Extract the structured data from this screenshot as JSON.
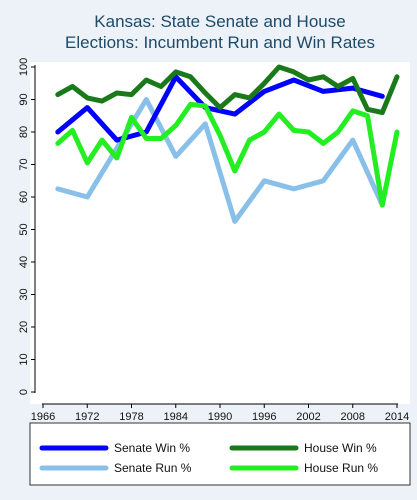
{
  "chart_data": {
    "type": "line",
    "title": [
      "Kansas: State Senate and House",
      "Elections: Incumbent Run and Win Rates"
    ],
    "xlabel": "",
    "ylabel": "",
    "xlim": [
      1966,
      2014
    ],
    "ylim": [
      0,
      100
    ],
    "x_ticks": [
      1966,
      1972,
      1978,
      1984,
      1990,
      1996,
      2002,
      2008,
      2014
    ],
    "x_tick_labels": [
      "1966",
      "1972",
      "1978",
      "1984",
      "1990",
      "1996",
      "2002",
      "2008",
      "2014"
    ],
    "y_ticks": [
      0,
      10,
      20,
      30,
      40,
      50,
      60,
      70,
      80,
      90,
      100
    ],
    "y_tick_labels": [
      "0",
      "10",
      "20",
      "30",
      "40",
      "50",
      "60",
      "70",
      "80",
      "90",
      "100"
    ],
    "grid": false,
    "legend_position": "bottom",
    "series": [
      {
        "name": "Senate Run %",
        "color": "#88c0ea",
        "x": [
          1968,
          1972,
          1976,
          1980,
          1984,
          1988,
          1992,
          1996,
          2000,
          2004,
          2008,
          2012
        ],
        "y": [
          62.5,
          60,
          75,
          90,
          72.5,
          82.5,
          52.5,
          65,
          62.5,
          65,
          77.5,
          57.5
        ]
      },
      {
        "name": "Senate Win %",
        "color": "#0000ff",
        "x": [
          1968,
          1972,
          1976,
          1980,
          1984,
          1988,
          1992,
          1996,
          2000,
          2004,
          2008,
          2012
        ],
        "y": [
          80,
          87.5,
          77.5,
          80,
          97,
          87.5,
          85.5,
          92.5,
          96,
          92.5,
          93.5,
          91
        ]
      },
      {
        "name": "House Run %",
        "color": "#22ee22",
        "x": [
          1968,
          1970,
          1972,
          1974,
          1976,
          1978,
          1980,
          1982,
          1984,
          1986,
          1988,
          1990,
          1992,
          1994,
          1996,
          1998,
          2000,
          2002,
          2004,
          2006,
          2008,
          2010,
          2012,
          2014
        ],
        "y": [
          76.5,
          80.5,
          70.5,
          77.5,
          72,
          84.5,
          78,
          78,
          82,
          88.5,
          88,
          79,
          68,
          77.5,
          80,
          85.5,
          80.5,
          80,
          76.5,
          80,
          86.5,
          85,
          57.5,
          80
        ]
      },
      {
        "name": "House Win %",
        "color": "#1a7a1a",
        "x": [
          1968,
          1970,
          1972,
          1974,
          1976,
          1978,
          1980,
          1982,
          1984,
          1986,
          1988,
          1990,
          1992,
          1994,
          1996,
          1998,
          2000,
          2002,
          2004,
          2006,
          2008,
          2010,
          2012,
          2014
        ],
        "y": [
          91.5,
          94,
          90.5,
          89.5,
          92,
          91.5,
          96,
          94,
          98.5,
          97,
          92,
          87.5,
          91.5,
          90.5,
          95,
          100,
          98.5,
          96,
          97,
          94,
          96.5,
          87,
          86,
          97
        ]
      }
    ],
    "legend": [
      {
        "name": "Senate Win %",
        "color": "#0000ff"
      },
      {
        "name": "House Win %",
        "color": "#1a7a1a"
      },
      {
        "name": "Senate Run %",
        "color": "#88c0ea"
      },
      {
        "name": "House Run %",
        "color": "#22ee22"
      }
    ]
  }
}
